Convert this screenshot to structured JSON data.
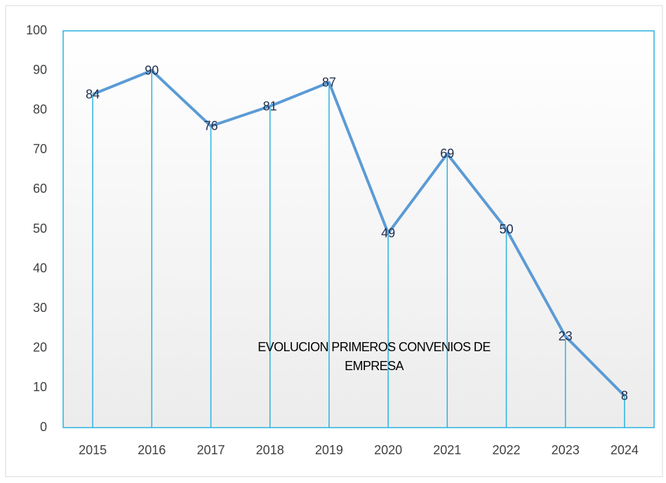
{
  "chart_data": {
    "type": "line",
    "title": "EVOLUCION PRIMEROS CONVENIOS DE EMPRESA",
    "categories": [
      "2015",
      "2016",
      "2017",
      "2018",
      "2019",
      "2020",
      "2021",
      "2022",
      "2023",
      "2024"
    ],
    "values": [
      84,
      90,
      76,
      81,
      87,
      49,
      69,
      50,
      23,
      8
    ],
    "color": "#5b9bd5",
    "drop_line_color": "#29b2e0",
    "ylim": [
      0,
      100
    ],
    "yticks": [
      0,
      10,
      20,
      30,
      40,
      50,
      60,
      70,
      80,
      90,
      100
    ],
    "grid": false
  }
}
